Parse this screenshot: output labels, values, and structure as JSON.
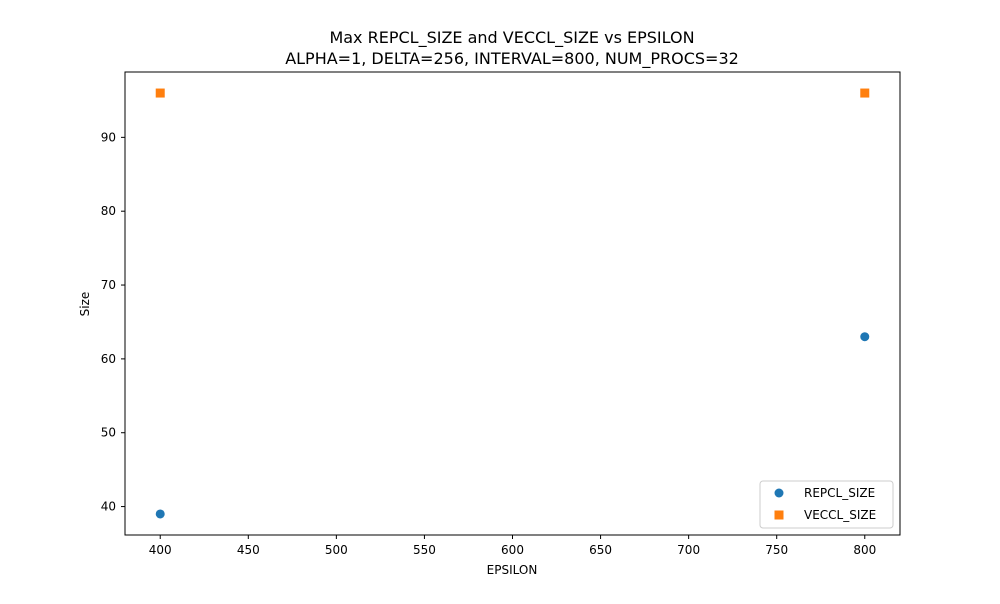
{
  "chart_data": {
    "type": "scatter",
    "title": "Max REPCL_SIZE and VECCL_SIZE vs EPSILON",
    "subtitle": "ALPHA=1, DELTA=256, INTERVAL=800, NUM_PROCS=32",
    "xlabel": "EPSILON",
    "ylabel": "Size",
    "xlim": [
      380,
      820
    ],
    "ylim": [
      36.15,
      98.85
    ],
    "xticks": [
      400,
      450,
      500,
      550,
      600,
      650,
      700,
      750,
      800
    ],
    "yticks": [
      40,
      50,
      60,
      70,
      80,
      90
    ],
    "grid": false,
    "legend_position": "lower-right",
    "series": [
      {
        "name": "REPCL_SIZE",
        "marker": "circle",
        "color": "#1f77b4",
        "points": [
          {
            "x": 400,
            "y": 39
          },
          {
            "x": 800,
            "y": 63
          }
        ]
      },
      {
        "name": "VECCL_SIZE",
        "marker": "square",
        "color": "#ff7f0e",
        "points": [
          {
            "x": 400,
            "y": 96
          },
          {
            "x": 800,
            "y": 96
          }
        ]
      }
    ]
  }
}
